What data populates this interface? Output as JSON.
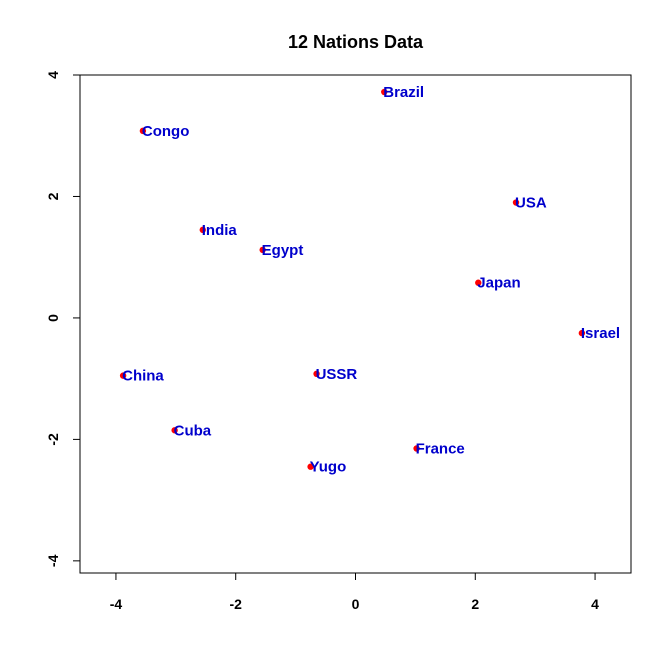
{
  "chart_data": {
    "type": "scatter",
    "title": "12 Nations Data",
    "xlabel": "",
    "ylabel": "",
    "xlim": [
      -4.6,
      4.6
    ],
    "ylim": [
      -4.2,
      4.0
    ],
    "xticks": [
      -4,
      -2,
      0,
      2,
      4
    ],
    "yticks": [
      -4,
      -2,
      0,
      2,
      4
    ],
    "xtick_labels": [
      "-4",
      "-2",
      "0",
      "2",
      "4"
    ],
    "ytick_labels": [
      "-4",
      "-2",
      "0",
      "2",
      "4"
    ],
    "grid": false,
    "colors": {
      "point": "#ff0000",
      "label": "#0000cc",
      "axis": "#000000"
    },
    "points": [
      {
        "label": "Brazil",
        "x": 0.48,
        "y": 3.72
      },
      {
        "label": "Congo",
        "x": -3.55,
        "y": 3.08
      },
      {
        "label": "USA",
        "x": 2.68,
        "y": 1.9
      },
      {
        "label": "India",
        "x": -2.55,
        "y": 1.45
      },
      {
        "label": "Egypt",
        "x": -1.55,
        "y": 1.12
      },
      {
        "label": "Japan",
        "x": 2.05,
        "y": 0.58
      },
      {
        "label": "Israel",
        "x": 3.78,
        "y": -0.25
      },
      {
        "label": "China",
        "x": -3.88,
        "y": -0.95
      },
      {
        "label": "USSR",
        "x": -0.65,
        "y": -0.92
      },
      {
        "label": "Cuba",
        "x": -3.02,
        "y": -1.85
      },
      {
        "label": "France",
        "x": 1.02,
        "y": -2.15
      },
      {
        "label": "Yugo",
        "x": -0.75,
        "y": -2.45
      }
    ]
  }
}
